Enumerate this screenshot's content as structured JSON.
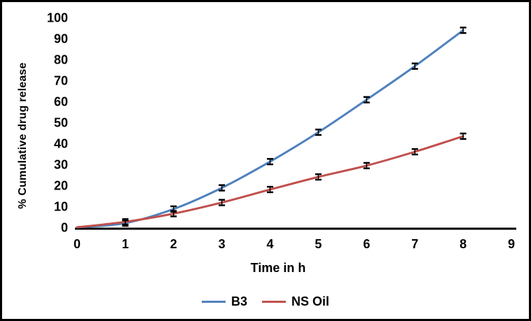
{
  "figure": {
    "background": "#ffffff",
    "border_color": "#000000"
  },
  "chart_data": {
    "type": "line",
    "title": "",
    "xlabel": "Time in h",
    "ylabel": "% Cumulative drug release",
    "x": [
      0,
      1,
      2,
      3,
      4,
      5,
      6,
      7,
      8
    ],
    "series": [
      {
        "name": "B3",
        "color": "#4F81BD",
        "values": [
          0,
          2.0,
          8.7,
          18.8,
          31.3,
          45.3,
          60.8,
          76.8,
          93.9
        ]
      },
      {
        "name": "NS Oil",
        "color": "#C0504D",
        "values": [
          0,
          2.6,
          6.5,
          11.8,
          18.0,
          24.0,
          29.4,
          36.0,
          43.4
        ]
      }
    ],
    "error_bar": {
      "magnitude": 1.3,
      "color": "#000000"
    },
    "xlim": [
      0,
      9
    ],
    "ylim": [
      0,
      100
    ],
    "x_ticks": [
      0,
      1,
      2,
      3,
      4,
      5,
      6,
      7,
      8,
      9
    ],
    "y_ticks": [
      0,
      10,
      20,
      30,
      40,
      50,
      60,
      70,
      80,
      90,
      100
    ],
    "grid": false,
    "smooth_lines": true,
    "legend_position": "bottom",
    "axis_color": "#000000"
  }
}
